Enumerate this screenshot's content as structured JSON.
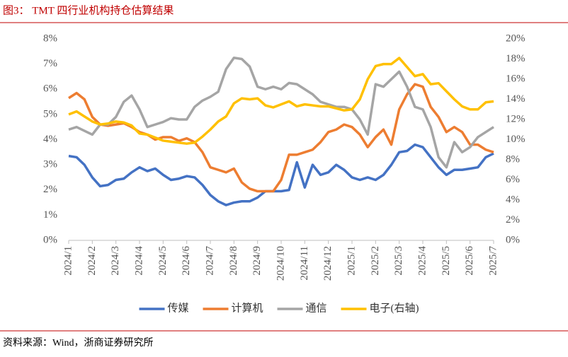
{
  "title": "图3： TMT 四行业机构持仓估算结果",
  "source": "资料来源：Wind，浙商证券研究所",
  "chart_data": {
    "type": "line",
    "categories": [
      "2024/1",
      null,
      null,
      "2024/2",
      null,
      null,
      "2024/3",
      null,
      null,
      "2024/4",
      null,
      null,
      "2024/5",
      null,
      null,
      "2024/6",
      null,
      null,
      "2024/7",
      null,
      null,
      "2024/8",
      null,
      null,
      "2024/9",
      null,
      null,
      "2024/10",
      null,
      null,
      "2024/11",
      null,
      null,
      "2024/12",
      null,
      null,
      "2025/1",
      null,
      null,
      "2025/2",
      null,
      null,
      "2025/3",
      null,
      null,
      "2025/4",
      null,
      null,
      "2025/5",
      null,
      null,
      "2025/6",
      null,
      null,
      "2025/7"
    ],
    "ylim": [
      0,
      8
    ],
    "yticks": [
      {
        "value": 0,
        "label": "0%"
      },
      {
        "value": 1,
        "label": "1%"
      },
      {
        "value": 2,
        "label": "2%"
      },
      {
        "value": 3,
        "label": "3%"
      },
      {
        "value": 4,
        "label": "4%"
      },
      {
        "value": 5,
        "label": "5%"
      },
      {
        "value": 6,
        "label": "6%"
      },
      {
        "value": 7,
        "label": "7%"
      },
      {
        "value": 8,
        "label": "8%"
      }
    ],
    "y2lim": [
      0,
      20
    ],
    "y2ticks": [
      {
        "value": 0,
        "label": "0%"
      },
      {
        "value": 2,
        "label": "2%"
      },
      {
        "value": 4,
        "label": "4%"
      },
      {
        "value": 6,
        "label": "6%"
      },
      {
        "value": 8,
        "label": "8%"
      },
      {
        "value": 10,
        "label": "10%"
      },
      {
        "value": 12,
        "label": "12%"
      },
      {
        "value": 14,
        "label": "14%"
      },
      {
        "value": 16,
        "label": "16%"
      },
      {
        "value": 18,
        "label": "18%"
      },
      {
        "value": 20,
        "label": "20%"
      }
    ],
    "grid": false,
    "legend": "bottom",
    "series": [
      {
        "name": "传媒",
        "color": "#4472c4",
        "axis": "y",
        "values": [
          3.35,
          3.3,
          3.0,
          2.5,
          2.15,
          2.2,
          2.4,
          2.45,
          2.7,
          2.9,
          2.75,
          2.85,
          2.6,
          2.4,
          2.45,
          2.55,
          2.5,
          2.2,
          1.8,
          1.55,
          1.4,
          1.5,
          1.55,
          1.55,
          1.7,
          1.95,
          1.95,
          1.95,
          2.0,
          3.1,
          2.1,
          3.0,
          2.6,
          2.7,
          3.0,
          2.8,
          2.5,
          2.4,
          2.5,
          2.4,
          2.6,
          3.0,
          3.5,
          3.55,
          3.8,
          3.7,
          3.3,
          2.9,
          2.6,
          2.8,
          2.8,
          2.85,
          2.9,
          3.3,
          3.45
        ]
      },
      {
        "name": "计算机",
        "color": "#ed7d31",
        "axis": "y",
        "values": [
          5.65,
          5.85,
          5.6,
          4.9,
          4.6,
          4.55,
          4.6,
          4.65,
          4.5,
          4.3,
          4.2,
          4.0,
          4.1,
          4.1,
          3.95,
          4.05,
          3.9,
          3.5,
          2.9,
          2.8,
          2.7,
          2.85,
          2.3,
          2.05,
          1.95,
          1.95,
          1.95,
          2.4,
          3.4,
          3.4,
          3.5,
          3.6,
          3.9,
          4.3,
          4.4,
          4.6,
          4.5,
          4.2,
          3.7,
          4.1,
          4.4,
          3.8,
          5.2,
          5.8,
          6.2,
          6.1,
          5.3,
          4.9,
          4.3,
          4.5,
          4.3,
          3.8,
          3.8,
          3.6,
          3.5
        ]
      },
      {
        "name": "通信",
        "color": "#a5a5a5",
        "axis": "y",
        "values": [
          4.4,
          4.5,
          4.35,
          4.2,
          4.6,
          4.6,
          4.9,
          5.5,
          5.75,
          5.2,
          4.5,
          4.6,
          4.7,
          4.85,
          4.8,
          4.8,
          5.3,
          5.55,
          5.7,
          5.9,
          6.8,
          7.25,
          7.2,
          6.9,
          6.1,
          6.0,
          6.1,
          6.0,
          6.25,
          6.2,
          6.0,
          5.8,
          5.5,
          5.4,
          5.3,
          5.3,
          5.2,
          4.8,
          4.2,
          6.2,
          6.1,
          6.4,
          6.7,
          6.1,
          5.3,
          5.2,
          4.5,
          3.3,
          2.9,
          3.9,
          3.5,
          3.7,
          4.1,
          4.3,
          4.5
        ]
      },
      {
        "name": "电子(右轴)",
        "color": "#ffc000",
        "axis": "y2",
        "values": [
          12.5,
          12.8,
          12.3,
          11.8,
          11.5,
          11.6,
          11.8,
          11.7,
          11.4,
          10.6,
          10.5,
          10.2,
          9.9,
          9.8,
          9.7,
          9.6,
          9.7,
          10.3,
          11.0,
          11.8,
          12.3,
          13.6,
          14.1,
          14.0,
          14.1,
          13.4,
          13.2,
          13.5,
          13.8,
          13.3,
          13.5,
          13.4,
          13.3,
          13.3,
          13.1,
          12.9,
          13.0,
          14.0,
          16.0,
          17.3,
          17.5,
          17.5,
          18.1,
          17.2,
          16.3,
          16.5,
          15.5,
          15.6,
          14.8,
          14.0,
          13.3,
          13.0,
          13.0,
          13.7,
          13.8
        ]
      }
    ]
  }
}
